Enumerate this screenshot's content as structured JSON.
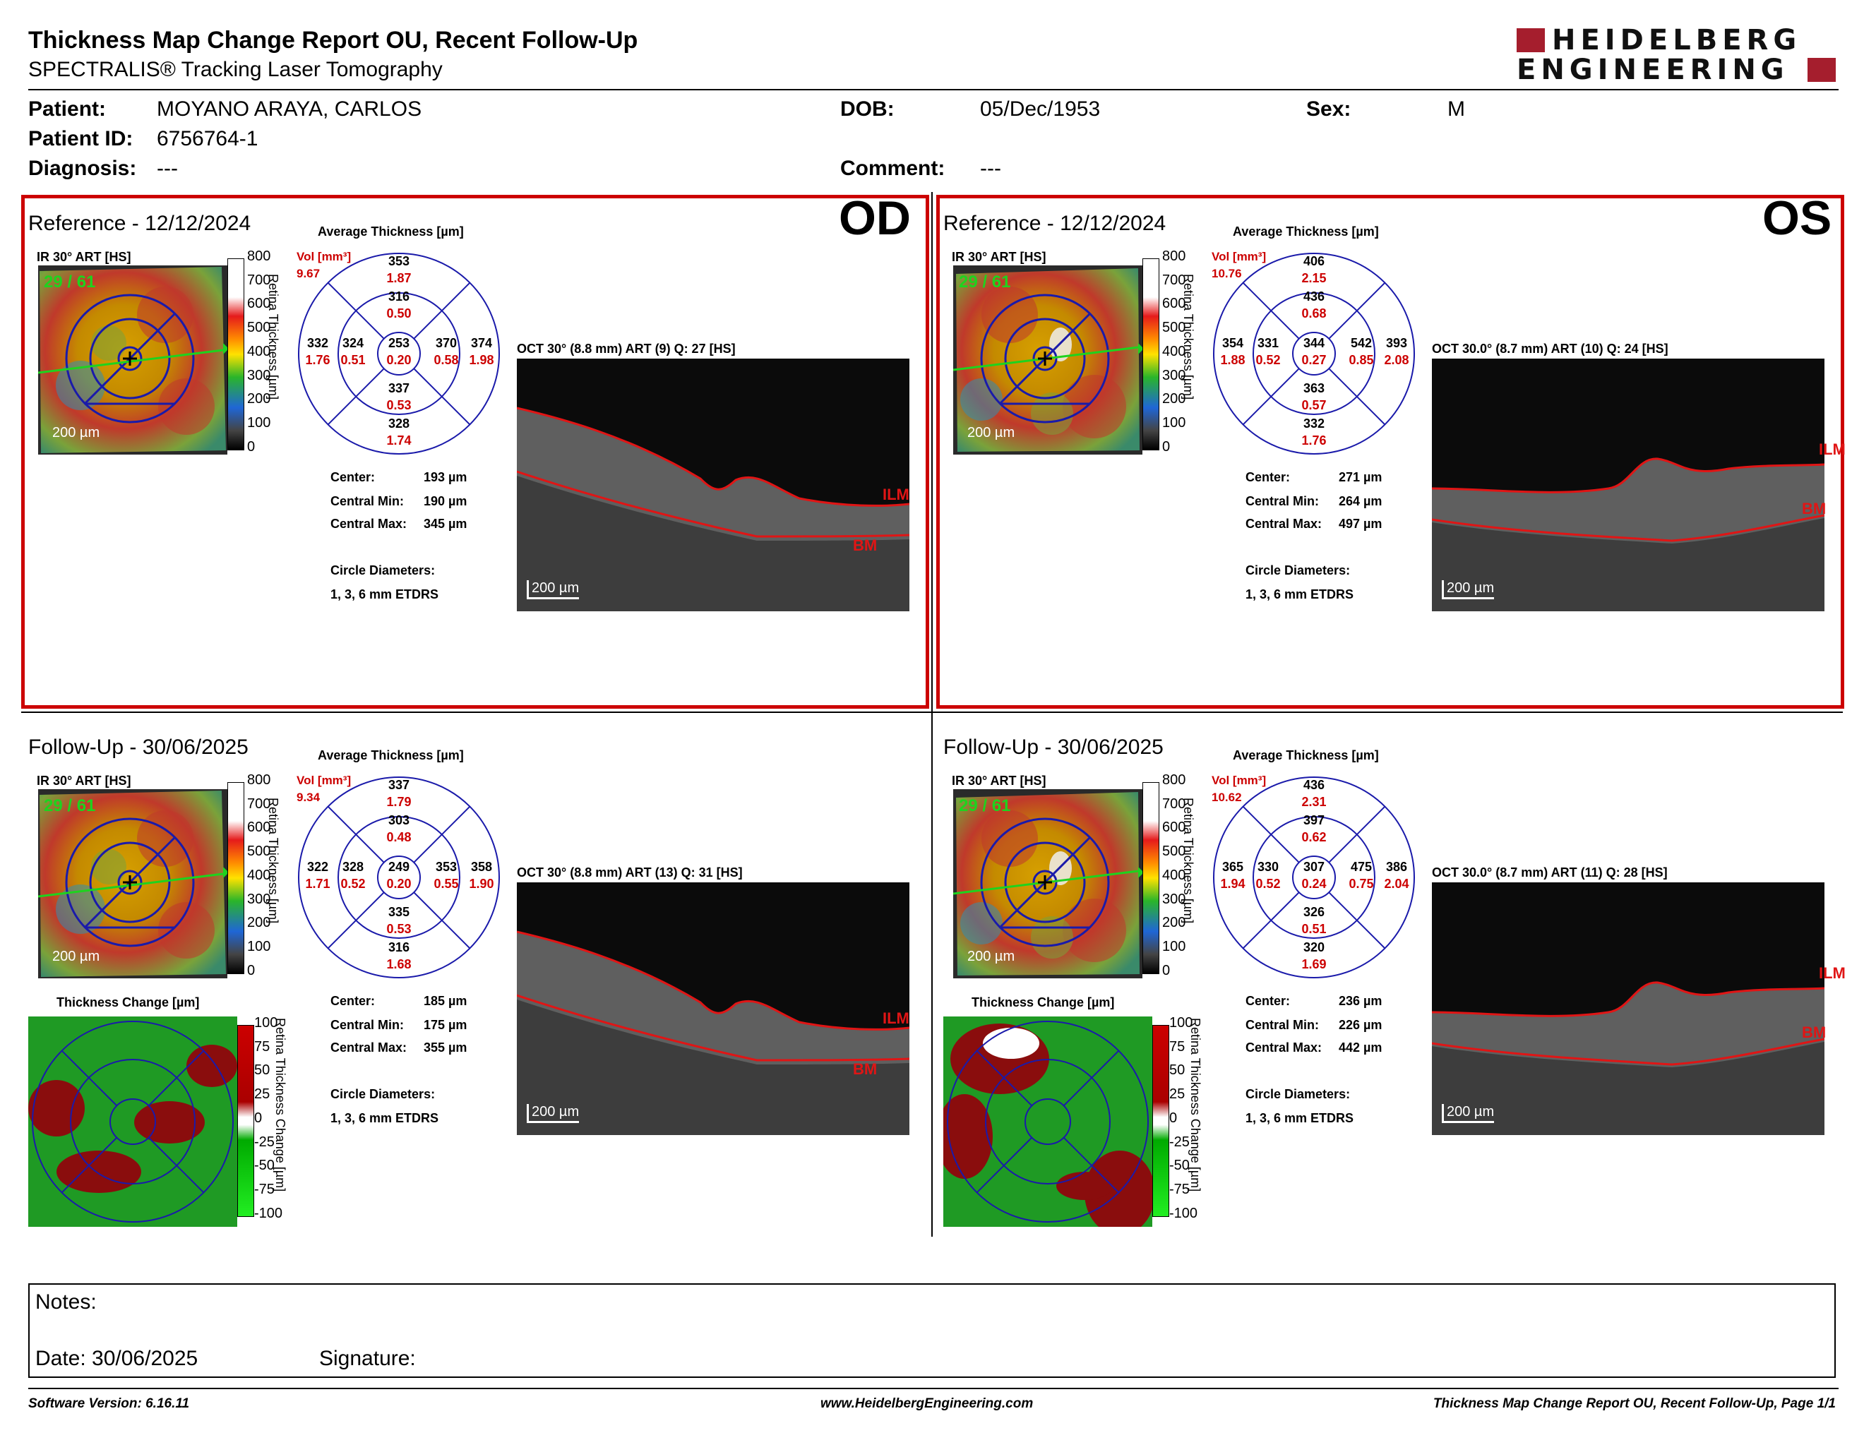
{
  "header": {
    "title": "Thickness Map Change Report OU, Recent Follow-Up",
    "subtitle": "SPECTRALIS® Tracking Laser Tomography",
    "logo_line1": "HEIDELBERG",
    "logo_line2": "ENGINEERING"
  },
  "patient": {
    "patient_label": "Patient:",
    "patient_value": "MOYANO ARAYA, CARLOS",
    "id_label": "Patient ID:",
    "id_value": "6756764-1",
    "diagnosis_label": "Diagnosis:",
    "diagnosis_value": "---",
    "dob_label": "DOB:",
    "dob_value": "05/Dec/1953",
    "comment_label": "Comment:",
    "comment_value": "---",
    "sex_label": "Sex:",
    "sex_value": "M"
  },
  "common": {
    "ir_label": "IR 30° ART [HS]",
    "avg_label": "Average Thickness [µm]",
    "vol_label": "Vol [mm³]",
    "scale_axis": "Retina Thickness [µm]",
    "scale_ticks": [
      "800",
      "700",
      "600",
      "500",
      "400",
      "300",
      "200",
      "100",
      "0"
    ],
    "change_axis": "Retina Thickness Change [µm]",
    "change_ticks": [
      "100",
      "75",
      "50",
      "25",
      "0",
      "-25",
      "-50",
      "-75",
      "-100"
    ],
    "change_label": "Thickness Change [µm]",
    "scalebar": "200 µm",
    "center_label": "Center:",
    "cmin_label": "Central Min:",
    "cmax_label": "Central Max:",
    "circle_label": "Circle Diameters:",
    "circle_value": "1, 3, 6 mm ETDRS",
    "ilm": "ILM",
    "bm": "BM",
    "accent": "#cc0000",
    "grid_color": "#1a1aaa"
  },
  "od_ref": {
    "eye": "OD",
    "title": "Reference - 12/12/2024",
    "frame": "29 / 61",
    "vol": "9.67",
    "oct_label": "OCT 30° (8.8 mm) ART (9) Q: 27 [HS]",
    "center": "193 µm",
    "cmin": "190 µm",
    "cmax": "345 µm",
    "etdrs": {
      "c": [
        "253",
        "0.20"
      ],
      "it": [
        "316",
        "0.50"
      ],
      "ot": [
        "353",
        "1.87"
      ],
      "ir": [
        "370",
        "0.58"
      ],
      "or": [
        "374",
        "1.98"
      ],
      "ib": [
        "337",
        "0.53"
      ],
      "ob": [
        "328",
        "1.74"
      ],
      "il": [
        "324",
        "0.51"
      ],
      "ol": [
        "332",
        "1.76"
      ]
    }
  },
  "os_ref": {
    "eye": "OS",
    "title": "Reference - 12/12/2024",
    "frame": "29 / 61",
    "vol": "10.76",
    "oct_label": "OCT 30.0° (8.7 mm) ART (10) Q: 24 [HS]",
    "center": "271 µm",
    "cmin": "264 µm",
    "cmax": "497 µm",
    "etdrs": {
      "c": [
        "344",
        "0.27"
      ],
      "it": [
        "436",
        "0.68"
      ],
      "ot": [
        "406",
        "2.15"
      ],
      "ir": [
        "542",
        "0.85"
      ],
      "or": [
        "393",
        "2.08"
      ],
      "ib": [
        "363",
        "0.57"
      ],
      "ob": [
        "332",
        "1.76"
      ],
      "il": [
        "331",
        "0.52"
      ],
      "ol": [
        "354",
        "1.88"
      ]
    }
  },
  "od_fu": {
    "title": "Follow-Up - 30/06/2025",
    "frame": "29 / 61",
    "vol": "9.34",
    "oct_label": "OCT 30° (8.8 mm) ART (13) Q: 31 [HS]",
    "center": "185 µm",
    "cmin": "175 µm",
    "cmax": "355 µm",
    "etdrs": {
      "c": [
        "249",
        "0.20"
      ],
      "it": [
        "303",
        "0.48"
      ],
      "ot": [
        "337",
        "1.79"
      ],
      "ir": [
        "353",
        "0.55"
      ],
      "or": [
        "358",
        "1.90"
      ],
      "ib": [
        "335",
        "0.53"
      ],
      "ob": [
        "316",
        "1.68"
      ],
      "il": [
        "328",
        "0.52"
      ],
      "ol": [
        "322",
        "1.71"
      ]
    }
  },
  "os_fu": {
    "title": "Follow-Up - 30/06/2025",
    "frame": "29 / 61",
    "vol": "10.62",
    "oct_label": "OCT 30.0° (8.7 mm) ART (11) Q: 28 [HS]",
    "center": "236 µm",
    "cmin": "226 µm",
    "cmax": "442 µm",
    "etdrs": {
      "c": [
        "307",
        "0.24"
      ],
      "it": [
        "397",
        "0.62"
      ],
      "ot": [
        "436",
        "2.31"
      ],
      "ir": [
        "475",
        "0.75"
      ],
      "or": [
        "386",
        "2.04"
      ],
      "ib": [
        "326",
        "0.51"
      ],
      "ob": [
        "320",
        "1.69"
      ],
      "il": [
        "330",
        "0.52"
      ],
      "ol": [
        "365",
        "1.94"
      ]
    }
  },
  "notes": {
    "notes_label": "Notes:",
    "date_label": "Date: 30/06/2025",
    "signature_label": "Signature:"
  },
  "footer": {
    "left": "Software Version: 6.16.11",
    "center": "www.HeidelbergEngineering.com",
    "right": "Thickness Map Change Report OU, Recent Follow-Up, Page 1/1"
  }
}
